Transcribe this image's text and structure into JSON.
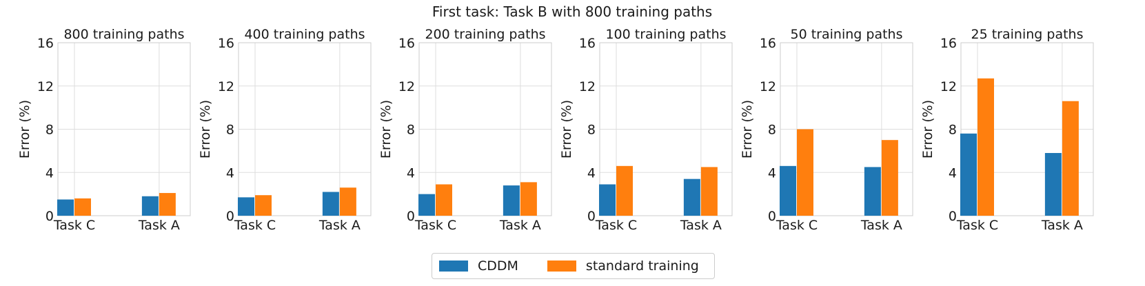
{
  "colors": {
    "cddm": "#1f77b4",
    "standard": "#ff7f0e",
    "grid": "#dddddd"
  },
  "chart_data": {
    "type": "bar",
    "suptitle": "First task: Task B with 800 training paths",
    "ylabel": "Error (%)",
    "ylim": [
      0,
      16
    ],
    "yticks": [
      "0",
      "4",
      "8",
      "12",
      "16"
    ],
    "categories": [
      "Task C",
      "Task A"
    ],
    "legend": {
      "placement": "bottom-center",
      "entries": [
        "CDDM",
        "standard training"
      ]
    },
    "subplots": [
      {
        "title": "800 training paths",
        "series": [
          {
            "name": "CDDM",
            "values": [
              1.5,
              1.8
            ]
          },
          {
            "name": "standard training",
            "values": [
              1.6,
              2.1
            ]
          }
        ]
      },
      {
        "title": "400 training paths",
        "series": [
          {
            "name": "CDDM",
            "values": [
              1.7,
              2.2
            ]
          },
          {
            "name": "standard training",
            "values": [
              1.9,
              2.6
            ]
          }
        ]
      },
      {
        "title": "200 training paths",
        "series": [
          {
            "name": "CDDM",
            "values": [
              2.0,
              2.8
            ]
          },
          {
            "name": "standard training",
            "values": [
              2.9,
              3.1
            ]
          }
        ]
      },
      {
        "title": "100 training paths",
        "series": [
          {
            "name": "CDDM",
            "values": [
              2.9,
              3.4
            ]
          },
          {
            "name": "standard training",
            "values": [
              4.6,
              4.5
            ]
          }
        ]
      },
      {
        "title": "50 training paths",
        "series": [
          {
            "name": "CDDM",
            "values": [
              4.6,
              4.5
            ]
          },
          {
            "name": "standard training",
            "values": [
              8.0,
              7.0
            ]
          }
        ]
      },
      {
        "title": "25 training paths",
        "series": [
          {
            "name": "CDDM",
            "values": [
              7.6,
              5.8
            ]
          },
          {
            "name": "standard training",
            "values": [
              12.7,
              10.6
            ]
          }
        ]
      }
    ]
  }
}
